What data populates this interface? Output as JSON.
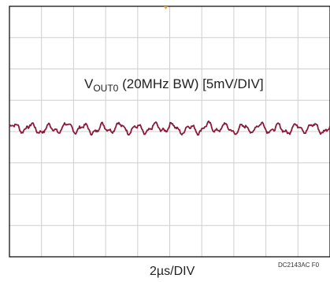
{
  "chart_data": {
    "type": "line",
    "title": "",
    "xlabel": "2µs/DIV",
    "ylabel": "",
    "grid": true,
    "divisions": {
      "x": 10,
      "y": 8
    },
    "trigger_marker": "top-center",
    "series": [
      {
        "name_main": "V",
        "name_sub": "OUT0",
        "name_rest": " (20MHz BW) [5mV/DIV]",
        "color": "#8b1a3a",
        "ripple_peak_to_peak_div": 0.45,
        "baseline_div": 0.0,
        "ripple_period_div": 0.55
      }
    ],
    "footnote": "DC2143AC F0"
  },
  "colors": {
    "grid": "#cfcfcf",
    "frame": "#000000",
    "trace": "#8b1a3a",
    "trigger": "#e8a33a"
  }
}
